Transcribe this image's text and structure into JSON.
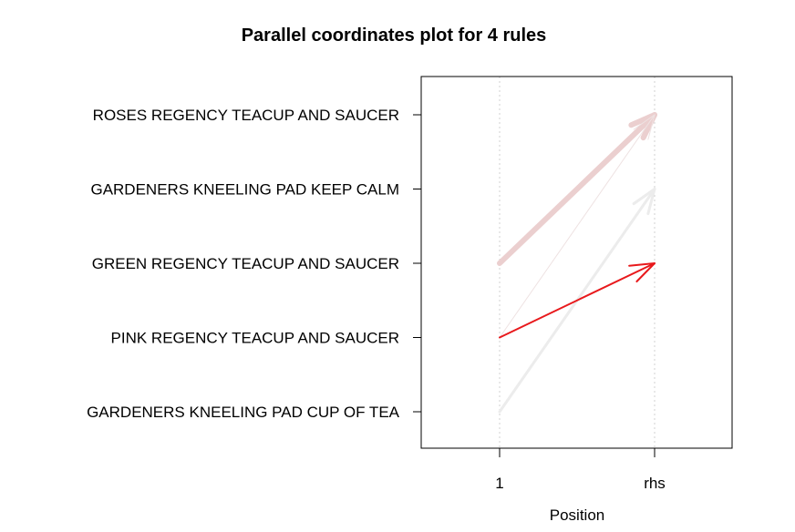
{
  "chart_data": {
    "type": "parallel-coordinates",
    "title": "Parallel coordinates plot for 4 rules",
    "xlabel": "Position",
    "x_ticks": [
      "1",
      "rhs"
    ],
    "y_items": [
      "GARDENERS KNEELING PAD CUP OF TEA",
      "PINK REGENCY TEACUP AND SAUCER",
      "GREEN REGENCY TEACUP AND SAUCER",
      "GARDENERS KNEELING PAD KEEP CALM",
      "ROSES REGENCY TEACUP AND SAUCER"
    ],
    "rules": [
      {
        "lhs": "GREEN REGENCY TEACUP AND SAUCER",
        "rhs": "ROSES REGENCY TEACUP AND SAUCER",
        "color": "#ebcfcf",
        "weight": "heavy"
      },
      {
        "lhs": "PINK REGENCY TEACUP AND SAUCER",
        "rhs": "ROSES REGENCY TEACUP AND SAUCER",
        "color": "#eee2e2",
        "weight": "thin"
      },
      {
        "lhs": "GARDENERS KNEELING PAD CUP OF TEA",
        "rhs": "GARDENERS KNEELING PAD KEEP CALM",
        "color": "#ececec",
        "weight": "medium"
      },
      {
        "lhs": "PINK REGENCY TEACUP AND SAUCER",
        "rhs": "GREEN REGENCY TEACUP AND SAUCER",
        "color": "#e8191c",
        "weight": "regular"
      }
    ],
    "grid": "dotted vertical at each position",
    "legend": "none"
  }
}
